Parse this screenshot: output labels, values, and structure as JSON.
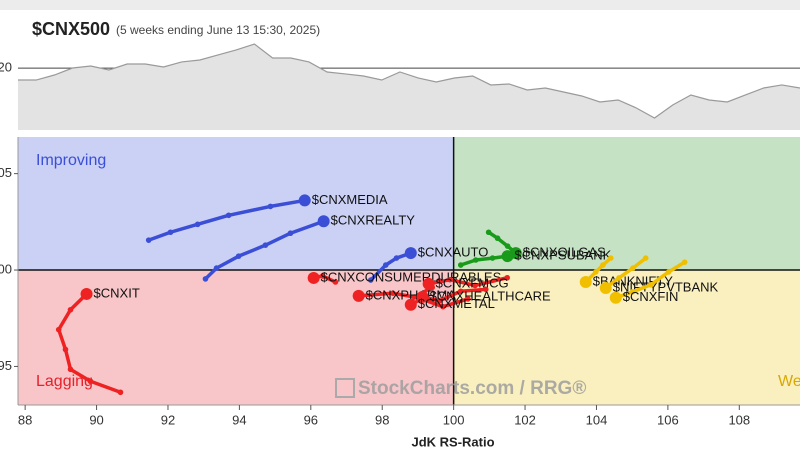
{
  "chart_data": [
    {
      "type": "line",
      "title": "$CNX500",
      "subtitle": "(5 weeks ending June 13 15:30, 2025)",
      "values": [
        18.08,
        18.08,
        18.89,
        20.02,
        20.35,
        19.7,
        20.67,
        20.67,
        20.19,
        21.0,
        21.32,
        22.13,
        22.94,
        23.9,
        21.64,
        21.64,
        21.0,
        19.38,
        19.06,
        18.73,
        18.08,
        19.38,
        18.41,
        17.76,
        18.41,
        18.73,
        17.28,
        17.44,
        16.47,
        16.79,
        16.14,
        15.5,
        14.53,
        14.85,
        13.56,
        11.94,
        14.04,
        15.66,
        14.85,
        14.53,
        15.66,
        16.79,
        17.28,
        16.79
      ],
      "color": "#9a9a9a",
      "ylim": [
        10,
        29.4
      ],
      "yticks": [
        20
      ]
    },
    {
      "type": "rrg",
      "xlabel": "JdK RS-Ratio",
      "watermark": "StockCharts.com / RRG®",
      "xlim": [
        87.8,
        109.7
      ],
      "ylim": [
        93.0,
        106.9
      ],
      "xticks": [
        88,
        90,
        92,
        94,
        96,
        98,
        100,
        102,
        104,
        106,
        108
      ],
      "yticks": [
        95,
        100,
        105
      ],
      "quadrants": [
        {
          "label": "Improving",
          "color": "#cbd0f5"
        },
        {
          "color": "#c5e3c4"
        },
        {
          "label": "Lagging",
          "color": "#f8c5c8"
        },
        {
          "label": "Weakening",
          "color": "#faefbe"
        }
      ],
      "series": [
        {
          "name": "$CNXMEDIA",
          "color": "#3a4fd6",
          "x": [
            91.46,
            92.07,
            92.83,
            93.7,
            94.87,
            95.83
          ],
          "y": [
            101.55,
            101.96,
            102.37,
            102.84,
            103.3,
            103.61
          ]
        },
        {
          "name": "$CNXREALTY",
          "color": "#3a4fd6",
          "x": [
            93.05,
            93.36,
            93.98,
            94.73,
            95.43,
            96.36
          ],
          "y": [
            99.54,
            100.1,
            100.72,
            101.29,
            101.91,
            102.53
          ]
        },
        {
          "name": "$CNXAUTO",
          "color": "#3a4fd6",
          "x": [
            97.68,
            98.1,
            98.4,
            98.8
          ],
          "y": [
            99.48,
            100.26,
            100.62,
            100.88
          ]
        },
        {
          "name": "$CNXIT",
          "color": "#ee2222",
          "x": [
            90.67,
            89.83,
            89.27,
            89.13,
            88.94,
            89.27,
            89.72
          ],
          "y": [
            93.66,
            94.23,
            94.85,
            95.88,
            96.91,
            97.94,
            98.76
          ]
        },
        {
          "name": "$CNXCONSUMERDURABLES",
          "color": "#ee2222",
          "x": [
            96.69,
            96.33,
            96.08
          ],
          "y": [
            99.38,
            99.69,
            99.59
          ]
        },
        {
          "name": "$CNXPHARMA",
          "color": "#ee2222",
          "x": [
            99.4,
            98.9,
            98.3,
            97.34
          ],
          "y": [
            99.1,
            98.6,
            98.8,
            98.66
          ]
        },
        {
          "name": "$CNXFMCG",
          "color": "#ee2222",
          "x": [
            101.5,
            100.6,
            99.9,
            99.3
          ],
          "y": [
            99.6,
            99.2,
            99.5,
            99.28
          ]
        },
        {
          "name": "$CNXHEALTHCARE",
          "color": "#ee2222",
          "x": [
            100.9,
            100.2,
            99.6,
            99.13
          ],
          "y": [
            99.0,
            98.9,
            98.4,
            98.61
          ]
        },
        {
          "name": "$CNXMETAL",
          "color": "#ee2222",
          "x": [
            100.4,
            99.7,
            99.1,
            98.8
          ],
          "y": [
            98.5,
            98.1,
            98.5,
            98.2
          ]
        },
        {
          "name": "$CNXOILGAS",
          "color": "#1a9a1a",
          "x": [
            100.98,
            101.23,
            101.51,
            101.74
          ],
          "y": [
            101.96,
            101.65,
            101.24,
            100.88
          ]
        },
        {
          "name": "$CNXPSUBANK",
          "color": "#1a9a1a",
          "x": [
            100.2,
            100.62,
            101.09,
            101.51
          ],
          "y": [
            100.26,
            100.52,
            100.62,
            100.72
          ]
        },
        {
          "name": "$BANKNIFTY",
          "color": "#f0c000",
          "x": [
            104.4,
            104.18,
            103.98,
            103.7
          ],
          "y": [
            100.62,
            100.26,
            99.9,
            99.38
          ]
        },
        {
          "name": "$NIFTYPVTBANK",
          "color": "#f0c000",
          "x": [
            105.38,
            105.02,
            104.63,
            104.26
          ],
          "y": [
            100.62,
            100.1,
            99.59,
            99.07
          ]
        },
        {
          "name": "$CNXFIN",
          "color": "#f0c000",
          "x": [
            106.47,
            106.02,
            105.52,
            105.01,
            104.54
          ],
          "y": [
            100.41,
            99.9,
            99.23,
            98.87,
            98.56
          ]
        }
      ]
    }
  ]
}
